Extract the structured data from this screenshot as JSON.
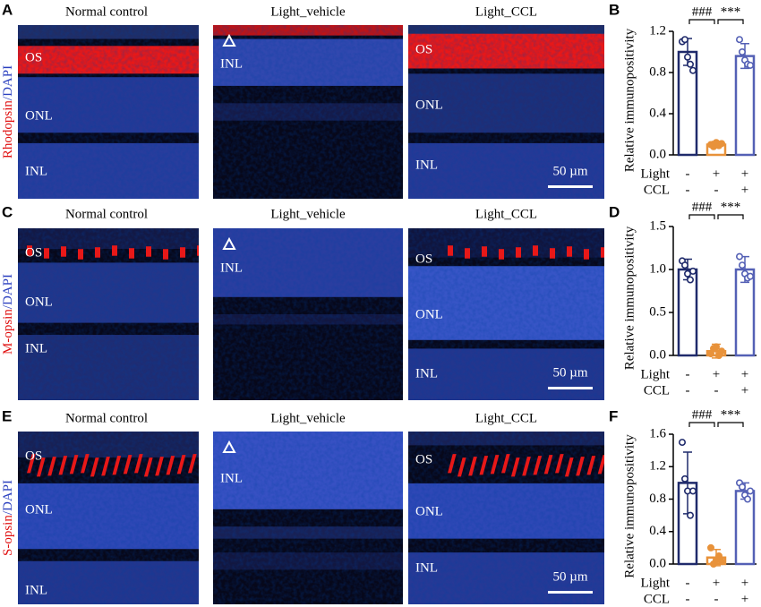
{
  "image_rows": [
    {
      "letter": "A",
      "stain": [
        "Rhodopsin",
        "/DAPI"
      ],
      "panels": [
        {
          "title": "Normal control",
          "labels": [
            "OS",
            "ONL",
            "INL"
          ]
        },
        {
          "title": "Light_vehicle",
          "labels": [
            "INL"
          ]
        },
        {
          "title": "Light_CCL",
          "labels": [
            "OS",
            "ONL",
            "INL"
          ],
          "scale": "50 µm"
        }
      ]
    },
    {
      "letter": "C",
      "stain": [
        "M-opsin",
        "/DAPI"
      ],
      "panels": [
        {
          "title": "Normal control",
          "labels": [
            "OS",
            "ONL",
            "INL"
          ]
        },
        {
          "title": "Light_vehicle",
          "labels": [
            "INL"
          ]
        },
        {
          "title": "Light_CCL",
          "labels": [
            "OS",
            "ONL",
            "INL"
          ],
          "scale": "50 µm"
        }
      ]
    },
    {
      "letter": "E",
      "stain": [
        "S-opsin",
        "/DAPI"
      ],
      "panels": [
        {
          "title": "Normal control",
          "labels": [
            "OS",
            "ONL",
            "INL"
          ]
        },
        {
          "title": "Light_vehicle",
          "labels": [
            "INL"
          ]
        },
        {
          "title": "Light_CCL",
          "labels": [
            "OS",
            "ONL",
            "INL"
          ],
          "scale": "50 µm"
        }
      ]
    }
  ],
  "chart_data": [
    {
      "type": "bar",
      "letter": "B",
      "ylabel": "Relative immunopositivity",
      "values": [
        1.0,
        0.1,
        0.96
      ],
      "errors": [
        0.13,
        0.03,
        0.12
      ],
      "points": [
        [
          1.1,
          1.12,
          0.95,
          0.88,
          0.82
        ],
        [
          0.1,
          0.08,
          0.12,
          0.09,
          0.11
        ],
        [
          1.12,
          1.0,
          0.92,
          0.88,
          0.87
        ]
      ],
      "colors": [
        "#1f2a6b",
        "#e8923a",
        "#5460b5"
      ],
      "ylim": [
        0,
        1.2
      ],
      "yticks": [
        {
          "value": 0,
          "label": "0.0"
        },
        0.4,
        0.8,
        1.2
      ],
      "significance": [
        "###",
        "***"
      ],
      "rows": [
        {
          "name": "Light",
          "signs": [
            "-",
            "+",
            "+"
          ]
        },
        {
          "name": "CCL",
          "signs": [
            "-",
            "-",
            "+"
          ]
        }
      ]
    },
    {
      "type": "bar",
      "letter": "D",
      "ylabel": "Relative immunopositivity",
      "values": [
        1.0,
        0.05,
        1.0
      ],
      "errors": [
        0.12,
        0.08,
        0.15
      ],
      "points": [
        [
          1.1,
          1.05,
          0.95,
          0.88,
          0.98
        ],
        [
          0.02,
          0.08,
          0.1,
          0.0,
          0.05
        ],
        [
          1.15,
          1.05,
          0.95,
          0.9,
          0.92
        ]
      ],
      "colors": [
        "#1f2a6b",
        "#e8923a",
        "#5460b5"
      ],
      "ylim": [
        0,
        1.5
      ],
      "yticks": [
        {
          "value": 0,
          "label": "0.0"
        },
        0.5,
        {
          "value": 1,
          "label": "1.0"
        },
        1.5
      ],
      "significance": [
        "###",
        "***"
      ],
      "rows": [
        {
          "name": "Light",
          "signs": [
            "-",
            "+",
            "+"
          ]
        },
        {
          "name": "CCL",
          "signs": [
            "-",
            "-",
            "+"
          ]
        }
      ]
    },
    {
      "type": "bar",
      "letter": "F",
      "ylabel": "Relative immunopositivity",
      "values": [
        1.0,
        0.08,
        0.9
      ],
      "errors": [
        0.38,
        0.1,
        0.1
      ],
      "points": [
        [
          1.5,
          1.05,
          0.9,
          0.6,
          0.9
        ],
        [
          0.2,
          0.0,
          0.05,
          0.1,
          0.03
        ],
        [
          1.0,
          0.95,
          0.85,
          0.8,
          0.9
        ]
      ],
      "colors": [
        "#1f2a6b",
        "#e8923a",
        "#5460b5"
      ],
      "ylim": [
        0,
        1.6
      ],
      "yticks": [
        {
          "value": 0,
          "label": "0.0"
        },
        0.4,
        0.8,
        1.2,
        1.6
      ],
      "significance": [
        "###",
        "***"
      ],
      "rows": [
        {
          "name": "Light",
          "signs": [
            "-",
            "+",
            "+"
          ]
        },
        {
          "name": "CCL",
          "signs": [
            "-",
            "-",
            "+"
          ]
        }
      ]
    }
  ]
}
